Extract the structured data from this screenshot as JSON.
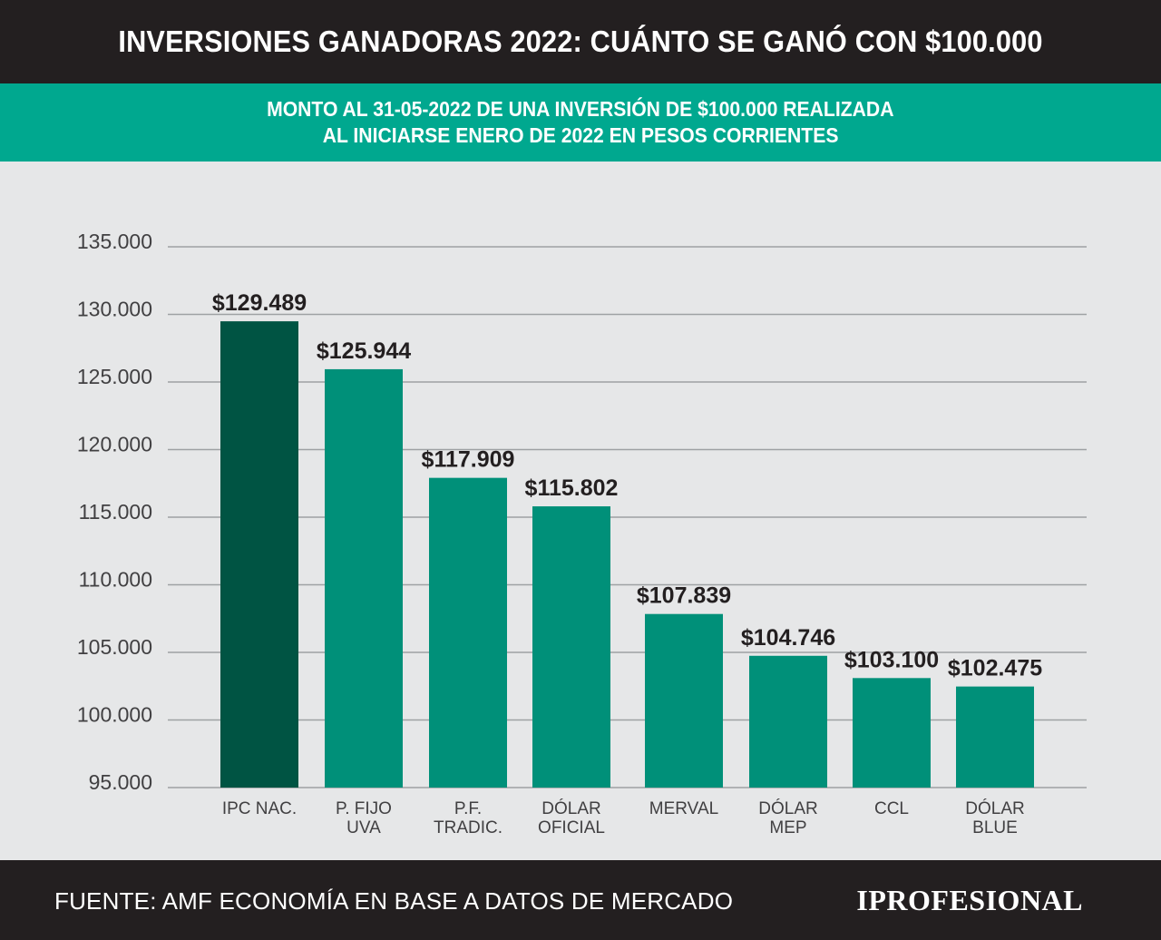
{
  "header": {
    "title": "INVERSIONES GANADORAS 2022: CUÁNTO SE GANÓ CON $100.000",
    "subtitle_line1": "MONTO AL 31-05-2022 DE UNA INVERSIÓN DE $100.000 REALIZADA",
    "subtitle_line2": "AL INICIARSE ENERO DE 2022 EN PESOS CORRIENTES"
  },
  "footer": {
    "source": "FUENTE: AMF ECONOMÍA EN BASE A DATOS DE MERCADO",
    "logo": "IPROFESIONAL"
  },
  "chart_data": {
    "type": "bar",
    "categories": [
      [
        "IPC NAC."
      ],
      [
        "P. FIJO",
        "UVA"
      ],
      [
        "P.F.",
        "TRADIC."
      ],
      [
        "DÓLAR",
        "OFICIAL"
      ],
      [
        "MERVAL"
      ],
      [
        "DÓLAR",
        "MEP"
      ],
      [
        "CCL"
      ],
      [
        "DÓLAR",
        "BLUE"
      ]
    ],
    "values": [
      129489,
      125944,
      117909,
      115802,
      107839,
      104746,
      103100,
      102475
    ],
    "value_labels": [
      "$129.489",
      "$125.944",
      "$117.909",
      "$115.802",
      "$107.839",
      "$104.746",
      "$103.100",
      "$102.475"
    ],
    "ylim": [
      95000,
      135000
    ],
    "yticks": [
      95000,
      100000,
      105000,
      110000,
      115000,
      120000,
      125000,
      130000,
      135000
    ],
    "ytick_labels": [
      "95.000",
      "100.000",
      "105.000",
      "110.000",
      "115.000",
      "120.000",
      "125.000",
      "130.000",
      "135.000"
    ],
    "grid": true,
    "colors": {
      "highlight": "#005443",
      "bar": "#009079",
      "grid": "#9ea1a3",
      "tick_text": "#414042",
      "value_text": "#231f20"
    }
  }
}
